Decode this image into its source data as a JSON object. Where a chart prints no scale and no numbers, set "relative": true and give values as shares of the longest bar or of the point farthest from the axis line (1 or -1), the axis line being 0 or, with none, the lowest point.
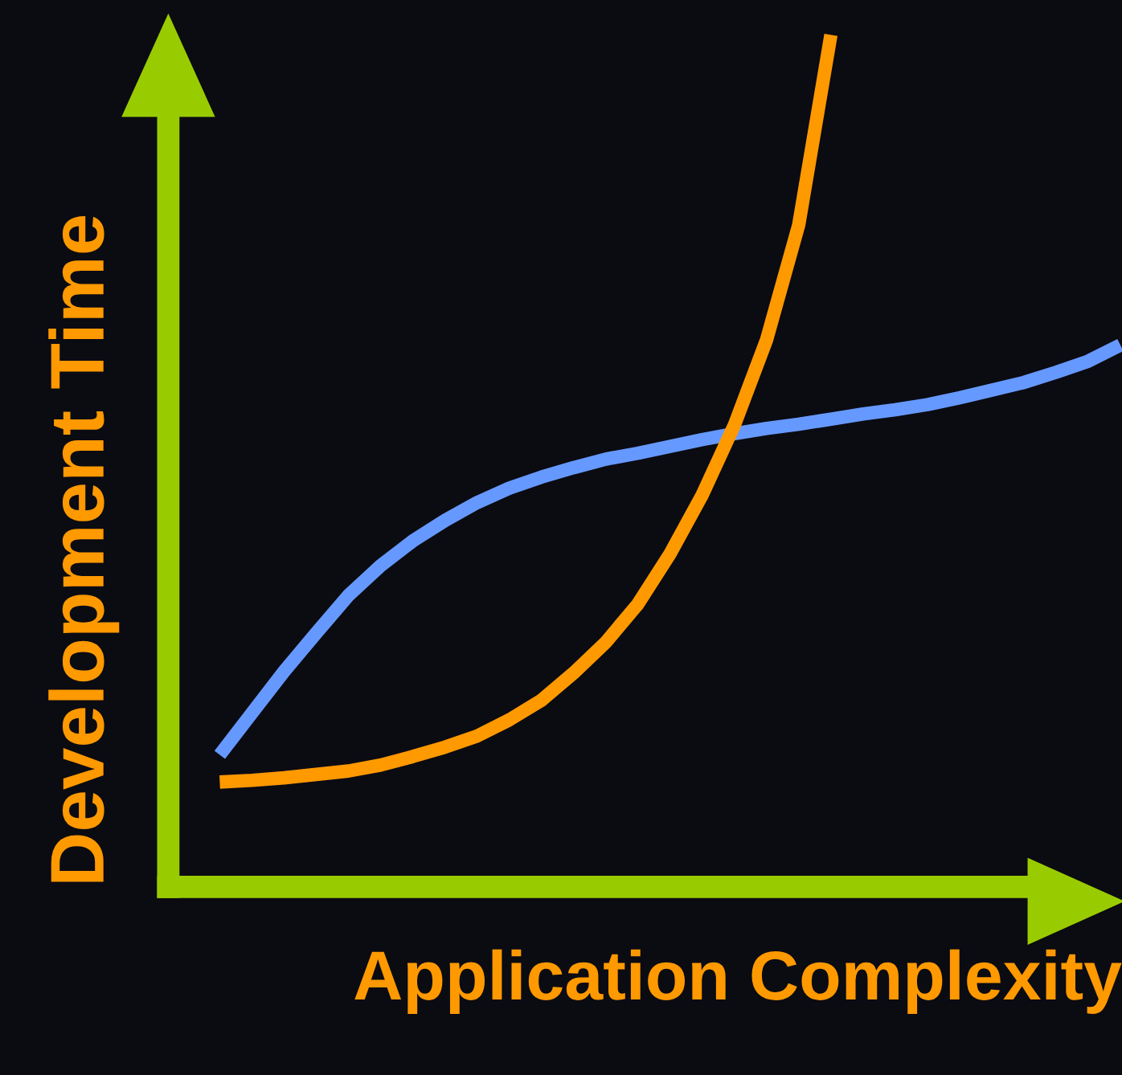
{
  "chart_data": {
    "type": "line",
    "relative": true,
    "xlabel": "Application Complexity",
    "ylabel": "Development Time",
    "categories": [
      null,
      null,
      null,
      null,
      null,
      null,
      null,
      null,
      null,
      null,
      null,
      null,
      null,
      null,
      null,
      null,
      null,
      null,
      null,
      null,
      null,
      null,
      null,
      null,
      null,
      null,
      null,
      null,
      null
    ],
    "series": [
      {
        "color": "#6699ff",
        "values": [
          0.155,
          0.204,
          0.253,
          0.298,
          0.342,
          0.377,
          0.406,
          0.43,
          0.451,
          0.468,
          0.481,
          0.492,
          0.502,
          0.509,
          0.517,
          0.525,
          0.532,
          0.538,
          0.543,
          0.549,
          0.555,
          0.56,
          0.566,
          0.574,
          0.583,
          0.592,
          0.604,
          0.617,
          0.636
        ]
      },
      {
        "color": "#ff9900",
        "values": [
          0.123,
          0.125,
          0.128,
          0.132,
          0.136,
          0.143,
          0.153,
          0.164,
          0.177,
          0.196,
          0.219,
          0.251,
          0.287,
          0.332,
          0.391,
          0.46,
          0.542,
          0.642,
          0.777,
          1.0,
          null,
          null,
          null,
          null,
          null,
          null,
          null,
          null,
          null
        ]
      }
    ],
    "line_style": "solid"
  }
}
